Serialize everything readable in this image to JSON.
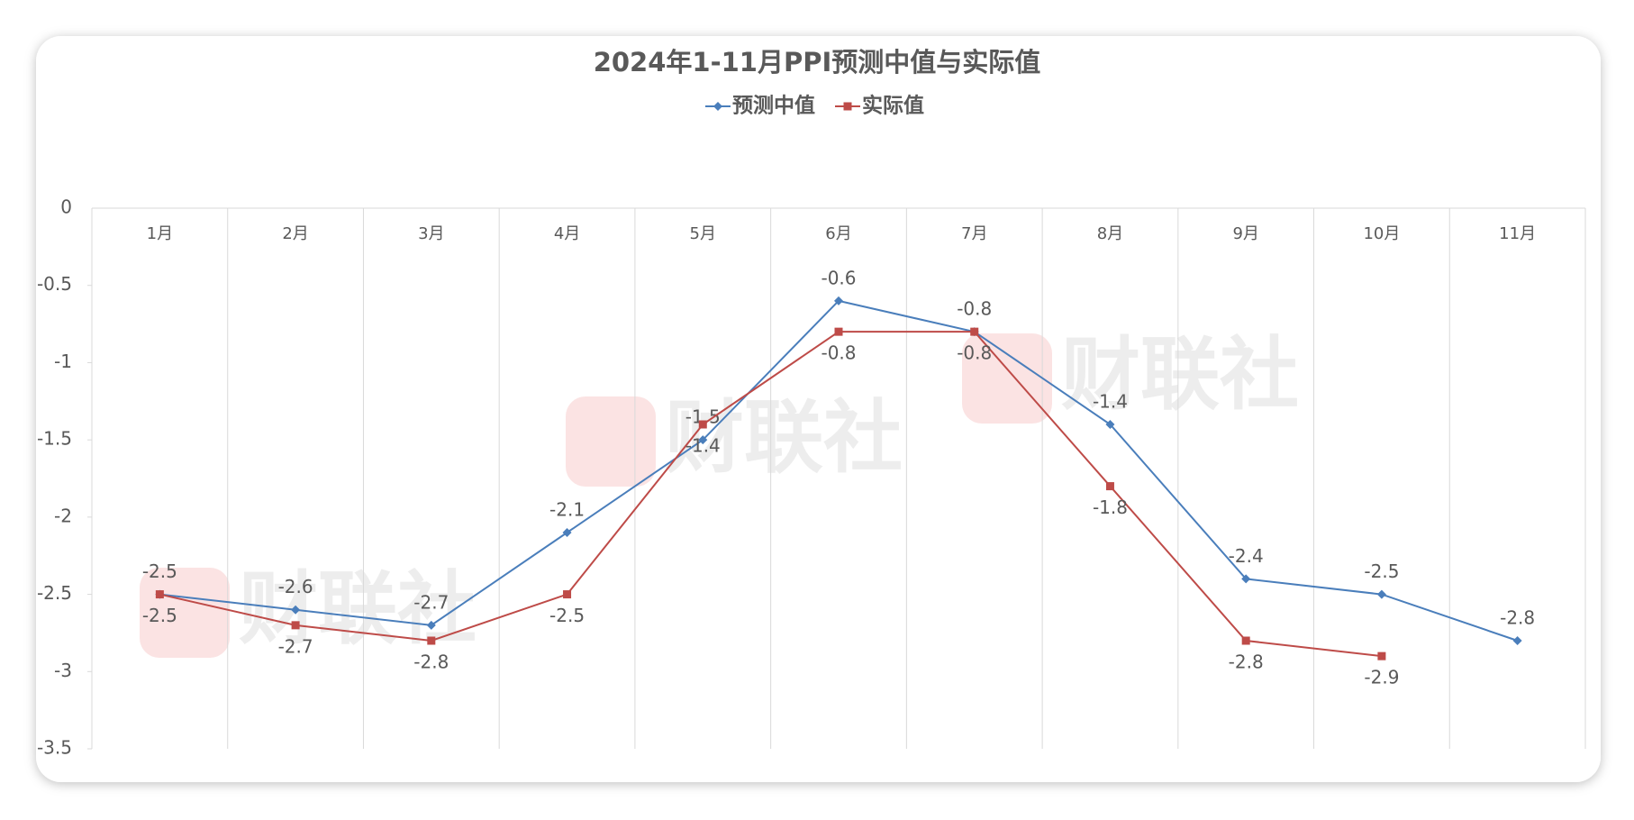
{
  "chart_data": {
    "type": "line",
    "title": "2024年1-11月PPI预测中值与实际值",
    "categories": [
      "1月",
      "2月",
      "3月",
      "4月",
      "5月",
      "6月",
      "7月",
      "8月",
      "9月",
      "10月",
      "11月"
    ],
    "series": [
      {
        "name": "预测中值",
        "color": "#4a7ebb",
        "values": [
          -2.5,
          -2.6,
          -2.7,
          -2.1,
          -1.5,
          -0.6,
          -0.8,
          -1.4,
          -2.4,
          -2.5,
          -2.8
        ]
      },
      {
        "name": "实际值",
        "color": "#be4b48",
        "values": [
          -2.5,
          -2.7,
          -2.8,
          -2.5,
          -1.4,
          -0.8,
          -0.8,
          -1.8,
          -2.8,
          -2.9,
          null
        ]
      }
    ],
    "ylim": [
      -3.5,
      0
    ],
    "yticks": [
      0,
      -0.5,
      -1,
      -1.5,
      -2,
      -2.5,
      -3,
      -3.5
    ],
    "legend": "top",
    "watermark": "财联社"
  }
}
